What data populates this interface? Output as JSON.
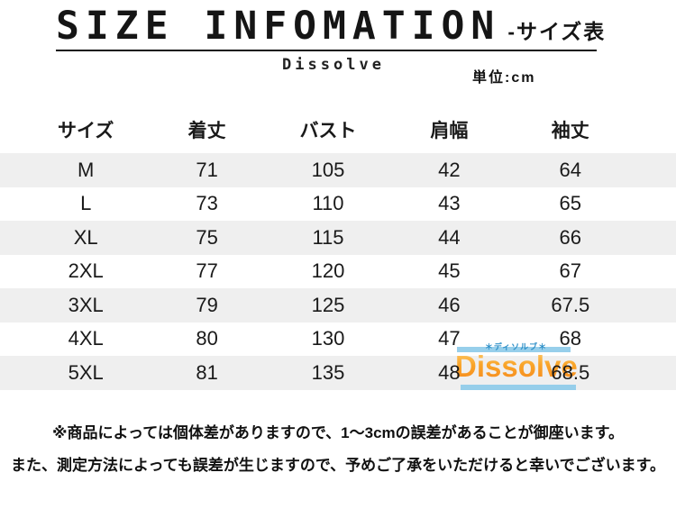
{
  "header": {
    "title": "SIZE INFOMATION",
    "title_suffix": "-サイズ表",
    "brand": "Dissolve",
    "unit_label": "単位:cm"
  },
  "table": {
    "columns": [
      "サイズ",
      "着丈",
      "バスト",
      "肩幅",
      "袖丈"
    ],
    "rows": [
      {
        "size": "M",
        "values": [
          "71",
          "105",
          "42",
          "64"
        ]
      },
      {
        "size": "L",
        "values": [
          "73",
          "110",
          "43",
          "65"
        ]
      },
      {
        "size": "XL",
        "values": [
          "75",
          "115",
          "44",
          "66"
        ]
      },
      {
        "size": "2XL",
        "values": [
          "77",
          "120",
          "45",
          "67"
        ]
      },
      {
        "size": "3XL",
        "values": [
          "79",
          "125",
          "46",
          "67.5"
        ]
      },
      {
        "size": "4XL",
        "values": [
          "80",
          "130",
          "47",
          "68"
        ]
      },
      {
        "size": "5XL",
        "values": [
          "81",
          "135",
          "48",
          "68.5"
        ]
      }
    ]
  },
  "watermark": {
    "subtext": "＊ディソルブ＊",
    "text": "Dissolve"
  },
  "notes": {
    "line1": "※商品によっては個体差がありますので、1～3cmの誤差があることが御座います。",
    "line2": "また、測定方法によっても誤差が生じますので、予めご了承をいただけると幸いでございます。"
  },
  "colors": {
    "row_band": "#efefef",
    "text": "#1a1a1a",
    "watermark_orange": "#f7941d",
    "watermark_blue": "#8ecbe9",
    "watermark_subtext_blue": "#2e8fc7"
  }
}
